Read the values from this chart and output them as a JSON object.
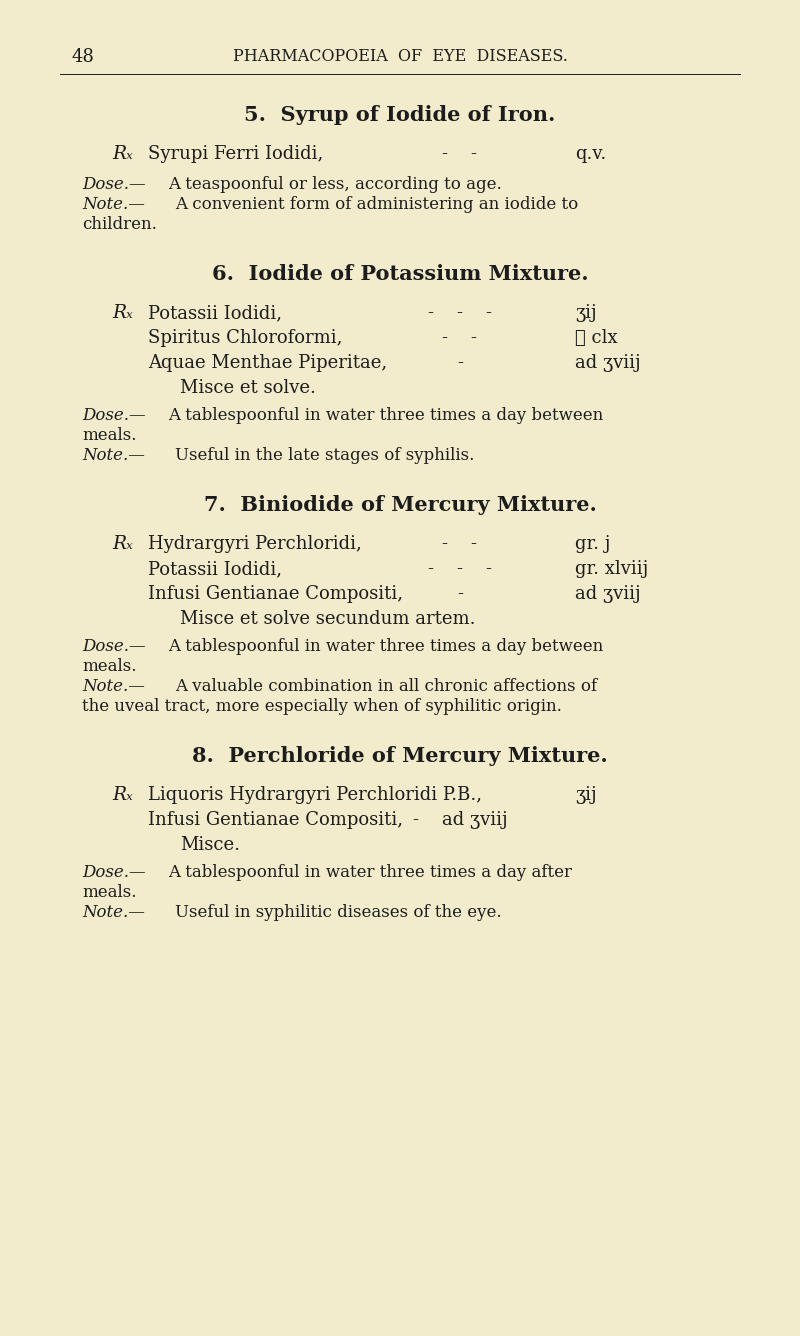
{
  "bg_color": "#f2eccc",
  "text_color": "#1c1c1c",
  "page_number": "48",
  "header": "PHARMACOPOEIA  OF  EYE  DISEASES.",
  "fig_width": 8.0,
  "fig_height": 13.36,
  "dpi": 100,
  "sections": [
    {
      "number": "5.",
      "title": "Syrup of Iodide of Iron.",
      "rx": [
        {
          "rx_sym": true,
          "name": "Syrupi Ferri Iodidi,",
          "dashes": "-    -",
          "amount": "q.v."
        }
      ],
      "misce": null,
      "dose": [
        "Dose.—A teaspoonful or less, according to age."
      ],
      "note": [
        "Note.—A convenient form of administering an iodide to",
        "children."
      ]
    },
    {
      "number": "6.",
      "title": "Iodide of Potassium Mixture.",
      "rx": [
        {
          "rx_sym": true,
          "name": "Potassii Iodidi,",
          "dashes": "-    -    -",
          "amount": "ʒij"
        },
        {
          "rx_sym": false,
          "name": "Spiritus Chloroformi,",
          "dashes": "-    -",
          "amount": "ℳ clx"
        },
        {
          "rx_sym": false,
          "name": "Aquae Menthae Piperitae,",
          "dashes": "-",
          "amount": "ad ʒviij"
        }
      ],
      "misce": "Misce et solve.",
      "dose": [
        "Dose.—A tablespoonful in water three times a day between",
        "meals."
      ],
      "note": [
        "Note.—Useful in the late stages of syphilis."
      ]
    },
    {
      "number": "7.",
      "title": "Biniodide of Mercury Mixture.",
      "rx": [
        {
          "rx_sym": true,
          "name": "Hydrargyri Perchloridi,",
          "dashes": "-    -",
          "amount": "gr. j"
        },
        {
          "rx_sym": false,
          "name": "Potassii Iodidi,",
          "dashes": "-    -    -",
          "amount": "gr. xlviij"
        },
        {
          "rx_sym": false,
          "name": "Infusi Gentianae Compositi,",
          "dashes": "-",
          "amount": "ad ʒviij"
        }
      ],
      "misce": "Misce et solve secundum artem.",
      "dose": [
        "Dose.—A tablespoonful in water three times a day between",
        "meals."
      ],
      "note": [
        "Note.—A valuable combination in all chronic affections of",
        "the uveal tract, more especially when of syphilitic origin."
      ]
    },
    {
      "number": "8.",
      "title": "Perchloride of Mercury Mixture.",
      "rx": [
        {
          "rx_sym": true,
          "name": "Liquoris Hydrargyri Perchloridi P.B.,",
          "dashes": "",
          "amount": "ʒij"
        },
        {
          "rx_sym": false,
          "name": "Infusi Gentianae Compositi,",
          "dashes": "-    ad ʒviij",
          "amount": ""
        }
      ],
      "misce": "Misce.",
      "dose": [
        "Dose.—A tablespoonful in water three times a day after",
        "meals."
      ],
      "note": [
        "Note.—Useful in syphilitic diseases of the eye."
      ]
    }
  ]
}
